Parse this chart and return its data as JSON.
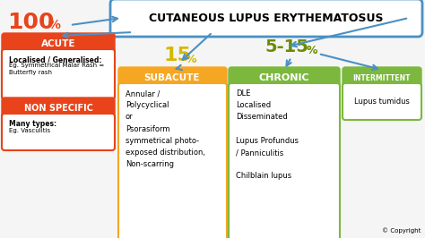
{
  "title": "CUTANEOUS LUPUS ERYTHEMATOSUS",
  "bg_color": "#f5f5f5",
  "main_box_edge": "#4a90c4",
  "acute_color": "#e8431a",
  "nonspecific_color": "#e8431a",
  "subacute_color": "#f5a623",
  "chronic_color": "#7cb83e",
  "intermittent_color": "#7cb83e",
  "arrow_color": "#4a90c4",
  "red_pct_color": "#e8431a",
  "olive_pct_color": "#6b8c00",
  "gold_pct_color": "#d4b800",
  "acute_label": "ACUTE",
  "nonspecific_label": "NON SPECIFIC",
  "subacute_label": "SUBACUTE",
  "chronic_label": "CHRONIC",
  "intermittent_label": "INTERMITTENT",
  "acute_text1": "Localised / Generalised:",
  "acute_text2": "Eg. Symmetrical Malar Rash =\nButterfly rash",
  "nonspecific_text1": "Many types:",
  "nonspecific_text2": "Eg. Vasculitis",
  "subacute_text": "Annular /\nPolycyclical\nor\nPsorasiform\nsymmetrical photo-\nexposed distribution,\nNon-scarring",
  "chronic_text": "DLE\nLocalised\nDisseminated\n\nLupus Profundus\n/ Panniculitis\n\nChilblain lupus",
  "intermittent_text": "Lupus tumidus",
  "copyright": "© Copyright"
}
